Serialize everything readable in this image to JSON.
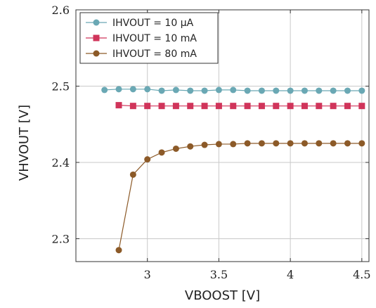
{
  "chart_data": {
    "type": "line",
    "xlabel": "VBOOST [V]",
    "ylabel": "VHVOUT [V]",
    "xlim": [
      2.5,
      4.55
    ],
    "ylim": [
      2.27,
      2.6
    ],
    "xticks": [
      3,
      3.5,
      4,
      4.5
    ],
    "xtick_labels": [
      "3",
      "3.5",
      "4",
      "4.5"
    ],
    "yticks": [
      2.3,
      2.4,
      2.5,
      2.6
    ],
    "ytick_labels": [
      "2.3",
      "2.4",
      "2.5",
      "2.6"
    ],
    "grid": true,
    "legend_position": "top-left",
    "series": [
      {
        "name": "IHVOUT = 10 µA",
        "color": "#6aa8b4",
        "marker": "circle",
        "x": [
          2.7,
          2.8,
          2.9,
          3.0,
          3.1,
          3.2,
          3.3,
          3.4,
          3.5,
          3.6,
          3.7,
          3.8,
          3.9,
          4.0,
          4.1,
          4.2,
          4.3,
          4.4,
          4.5
        ],
        "y": [
          2.495,
          2.496,
          2.496,
          2.496,
          2.494,
          2.495,
          2.494,
          2.494,
          2.495,
          2.495,
          2.494,
          2.494,
          2.494,
          2.494,
          2.494,
          2.494,
          2.494,
          2.494,
          2.494
        ]
      },
      {
        "name": "IHVOUT = 10 mA",
        "color": "#d0345a",
        "marker": "square",
        "x": [
          2.8,
          2.9,
          3.0,
          3.1,
          3.2,
          3.3,
          3.4,
          3.5,
          3.6,
          3.7,
          3.8,
          3.9,
          4.0,
          4.1,
          4.2,
          4.3,
          4.4,
          4.5
        ],
        "y": [
          2.475,
          2.474,
          2.474,
          2.474,
          2.474,
          2.474,
          2.474,
          2.474,
          2.474,
          2.474,
          2.474,
          2.474,
          2.474,
          2.474,
          2.474,
          2.474,
          2.474,
          2.474
        ]
      },
      {
        "name": "IHVOUT = 80 mA",
        "color": "#8c5a28",
        "marker": "circle",
        "x": [
          2.8,
          2.9,
          3.0,
          3.1,
          3.2,
          3.3,
          3.4,
          3.5,
          3.6,
          3.7,
          3.8,
          3.9,
          4.0,
          4.1,
          4.2,
          4.3,
          4.4,
          4.5
        ],
        "y": [
          2.285,
          2.384,
          2.404,
          2.413,
          2.418,
          2.421,
          2.423,
          2.424,
          2.424,
          2.425,
          2.425,
          2.425,
          2.425,
          2.425,
          2.425,
          2.425,
          2.425,
          2.425
        ]
      }
    ]
  }
}
